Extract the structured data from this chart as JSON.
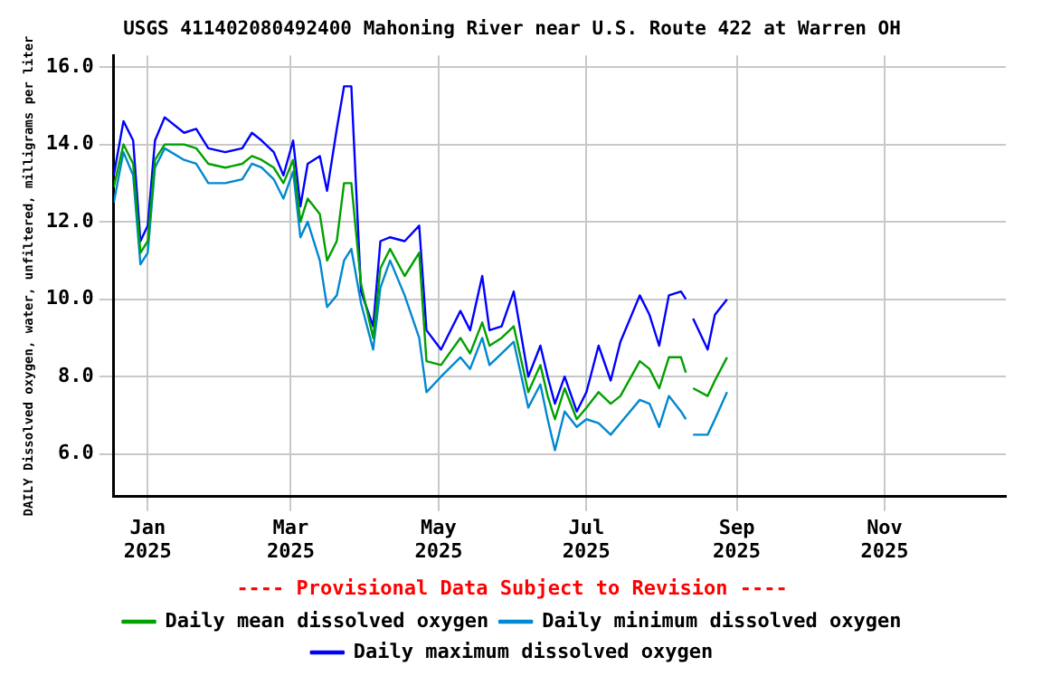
{
  "chart_data": {
    "type": "line",
    "title": "USGS 411402080492400 Mahoning River near U.S. Route 422 at Warren OH",
    "ylabel": "DAILY Dissolved oxygen, water, unfiltered, milligrams per liter",
    "annotations": [
      "---- Provisional Data Subject to Revision ----"
    ],
    "x": [
      "2024-12-18",
      "2024-12-22",
      "2024-12-26",
      "2024-12-29",
      "2025-01-01",
      "2025-01-04",
      "2025-01-08",
      "2025-01-16",
      "2025-01-21",
      "2025-01-26",
      "2025-02-02",
      "2025-02-09",
      "2025-02-13",
      "2025-02-17",
      "2025-02-22",
      "2025-02-26",
      "2025-03-02",
      "2025-03-05",
      "2025-03-08",
      "2025-03-13",
      "2025-03-16",
      "2025-03-20",
      "2025-03-23",
      "2025-03-26",
      "2025-03-30",
      "2025-04-04",
      "2025-04-07",
      "2025-04-11",
      "2025-04-17",
      "2025-04-23",
      "2025-04-26",
      "2025-05-02",
      "2025-05-10",
      "2025-05-14",
      "2025-05-19",
      "2025-05-22",
      "2025-05-27",
      "2025-06-01",
      "2025-06-07",
      "2025-06-12",
      "2025-06-15",
      "2025-06-18",
      "2025-06-22",
      "2025-06-27",
      "2025-07-01",
      "2025-07-06",
      "2025-07-11",
      "2025-07-15",
      "2025-07-23",
      "2025-07-27",
      "2025-07-31",
      "2025-08-04",
      "2025-08-09",
      "2025-08-11",
      "2025-08-12",
      "2025-08-14",
      "2025-08-20",
      "2025-08-23",
      "2025-08-28"
    ],
    "series": [
      {
        "name": "Daily mean dissolved oxygen",
        "color": "#00a000",
        "values": [
          12.9,
          14.0,
          13.5,
          11.2,
          11.5,
          13.6,
          14.0,
          14.0,
          13.9,
          13.5,
          13.4,
          13.5,
          13.7,
          13.6,
          13.4,
          13.0,
          13.6,
          12.0,
          12.6,
          12.2,
          11.0,
          11.5,
          13.0,
          13.0,
          10.4,
          9.0,
          10.8,
          11.3,
          10.6,
          11.2,
          8.4,
          8.3,
          9.0,
          8.6,
          9.4,
          8.8,
          9.0,
          9.3,
          7.6,
          8.3,
          7.5,
          6.9,
          7.7,
          6.9,
          7.2,
          7.6,
          7.3,
          7.5,
          8.4,
          8.2,
          7.7,
          8.5,
          8.5,
          8.1,
          null,
          7.7,
          7.5,
          7.9,
          8.5
        ]
      },
      {
        "name": "Daily minimum dissolved oxygen",
        "color": "#0088d0",
        "values": [
          12.5,
          13.8,
          13.2,
          10.9,
          11.2,
          13.4,
          13.9,
          13.6,
          13.5,
          13.0,
          13.0,
          13.1,
          13.5,
          13.4,
          13.1,
          12.6,
          13.3,
          11.6,
          12.0,
          11.0,
          9.8,
          10.1,
          11.0,
          11.3,
          9.9,
          8.7,
          10.3,
          11.0,
          10.1,
          9.0,
          7.6,
          8.0,
          8.5,
          8.2,
          9.0,
          8.3,
          8.6,
          8.9,
          7.2,
          7.8,
          6.9,
          6.1,
          7.1,
          6.7,
          6.9,
          6.8,
          6.5,
          6.8,
          7.4,
          7.3,
          6.7,
          7.5,
          7.1,
          6.9,
          null,
          6.5,
          6.5,
          6.9,
          7.6
        ]
      },
      {
        "name": "Daily maximum dissolved oxygen",
        "color": "#0000ff",
        "values": [
          13.2,
          14.6,
          14.1,
          11.5,
          11.9,
          14.1,
          14.7,
          14.3,
          14.4,
          13.9,
          13.8,
          13.9,
          14.3,
          14.1,
          13.8,
          13.2,
          14.1,
          12.4,
          13.5,
          13.7,
          12.8,
          14.4,
          15.5,
          15.5,
          10.2,
          9.3,
          11.5,
          11.6,
          11.5,
          11.9,
          9.2,
          8.7,
          9.7,
          9.2,
          10.6,
          9.2,
          9.3,
          10.2,
          8.0,
          8.8,
          8.0,
          7.3,
          8.0,
          7.1,
          7.6,
          8.8,
          7.9,
          8.9,
          10.1,
          9.6,
          8.8,
          10.1,
          10.2,
          10.0,
          null,
          9.5,
          8.7,
          9.6,
          10.0
        ]
      }
    ],
    "xlim": [
      "2024-12-18",
      "2025-12-21"
    ],
    "xticks": [
      {
        "value": "2025-01-01",
        "label": "Jan 2025"
      },
      {
        "value": "2025-03-01",
        "label": "Mar 2025"
      },
      {
        "value": "2025-05-01",
        "label": "May 2025"
      },
      {
        "value": "2025-07-01",
        "label": "Jul 2025"
      },
      {
        "value": "2025-09-01",
        "label": "Sep 2025"
      },
      {
        "value": "2025-11-01",
        "label": "Nov 2025"
      }
    ],
    "ylim": [
      4.9,
      16.3
    ],
    "yticks": [
      {
        "value": 6,
        "label": "6.0"
      },
      {
        "value": 8,
        "label": "8.0"
      },
      {
        "value": 10,
        "label": "10.0"
      },
      {
        "value": 12,
        "label": "12.0"
      },
      {
        "value": 14,
        "label": "14.0"
      },
      {
        "value": 16,
        "label": "16.0"
      }
    ],
    "grid": true,
    "legend": "bottom",
    "marker": "none",
    "line_style": "solid"
  }
}
